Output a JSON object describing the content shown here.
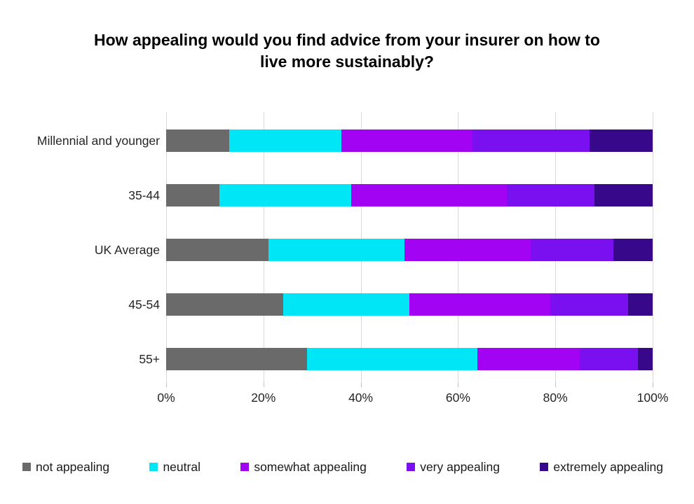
{
  "chart": {
    "title": "How appealing would you find advice from your insurer on how to live more sustainably?"
  },
  "chart_data": {
    "type": "bar",
    "orientation": "horizontal",
    "stacked": true,
    "title": "How appealing would you find advice from your insurer on how to live more sustainably?",
    "categories": [
      "Millennial and younger",
      "35-44",
      "UK Average",
      "45-54",
      "55+"
    ],
    "series": [
      {
        "name": "not appealing",
        "color": "#6a6a6a",
        "values": [
          13,
          11,
          21,
          24,
          29
        ]
      },
      {
        "name": "neutral",
        "color": "#00e6f6",
        "values": [
          23,
          27,
          28,
          26,
          35
        ]
      },
      {
        "name": "somewhat appealing",
        "color": "#a303f3",
        "values": [
          27,
          32,
          26,
          29,
          21
        ]
      },
      {
        "name": "very appealing",
        "color": "#7a0ff0",
        "values": [
          24,
          18,
          17,
          16,
          12
        ]
      },
      {
        "name": "extremely appealing",
        "color": "#38088a",
        "values": [
          13,
          12,
          8,
          5,
          3
        ]
      }
    ],
    "x_axis": {
      "tick_labels": [
        "0%",
        "20%",
        "40%",
        "60%",
        "80%",
        "100%"
      ],
      "range": [
        0,
        100
      ]
    },
    "grid": "vertical",
    "gridline_color": "#d9d9d9",
    "legend_position": "bottom",
    "xlabel": "",
    "ylabel": ""
  }
}
